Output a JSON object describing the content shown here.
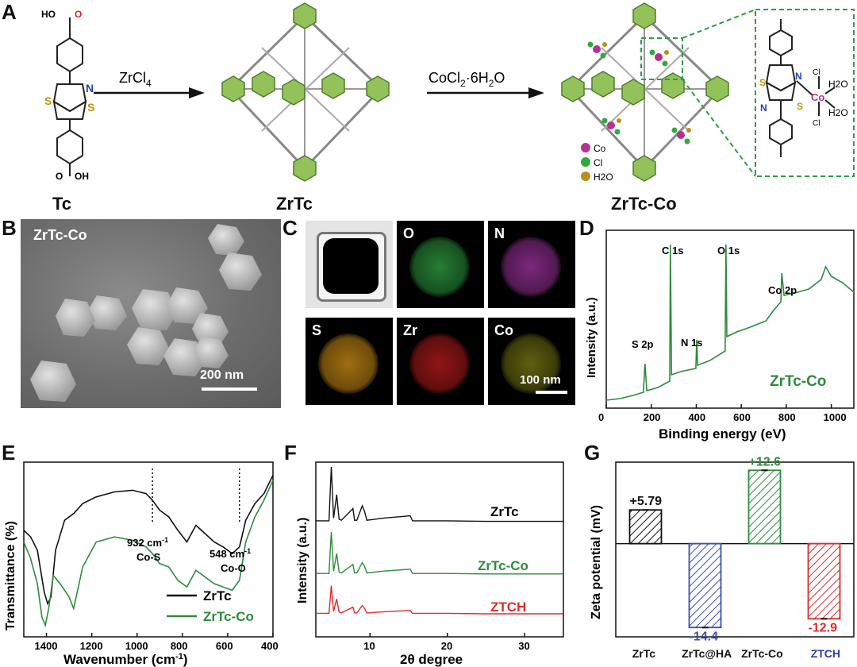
{
  "panels": {
    "A": {
      "label": "A",
      "structures": [
        "Tc",
        "ZrTc",
        "ZrTc-Co"
      ],
      "reagent1": "ZrCl",
      "reagent1_sub": "4",
      "reagent2_a": "CoCl",
      "reagent2_sub": "2",
      "reagent2_b": "·6H",
      "reagent2_sub2": "2",
      "reagent2_c": "O",
      "legend": [
        "Co",
        "Cl",
        "H2O"
      ],
      "legend_colors": [
        "#b5328e",
        "#2eab3a",
        "#b8901c"
      ],
      "atoms": {
        "S": "S",
        "N": "N",
        "Co": "Co",
        "Cl": "Cl",
        "H2O": "H2O",
        "OH": "OH",
        "HO": "HO",
        "O": "O"
      }
    },
    "B": {
      "label": "B",
      "sample": "ZrTc-Co",
      "scale": "200 nm"
    },
    "C": {
      "label": "C",
      "tiles": [
        "O",
        "N",
        "S",
        "Zr",
        "Co"
      ],
      "scale": "100 nm"
    },
    "D": {
      "label": "D",
      "sample": "ZrTc-Co",
      "peaks": [
        "C 1s",
        "O 1s",
        "Co 2p",
        "N 1s",
        "S 2p"
      ],
      "xlabel": "Binding energy (eV)",
      "ylabel": "Intensity (a.u.)",
      "xticks": [
        "0",
        "200",
        "400",
        "600",
        "800",
        "1000"
      ]
    },
    "E": {
      "label": "E",
      "xlabel": "Wavenumber (cm-1)",
      "ylabel": "Transmittance (%)",
      "xticks": [
        "1400",
        "1200",
        "1000",
        "800",
        "600",
        "400"
      ],
      "ann1": "932 cm-1",
      "ann1b": "Co-S",
      "ann2": "548 cm-1",
      "ann2b": "Co-O",
      "legend": [
        "ZrTc",
        "ZrTc-Co"
      ]
    },
    "F": {
      "label": "F",
      "xlabel": "2θ degree",
      "ylabel": "Intensity (a.u.)",
      "xticks": [
        "10",
        "20",
        "30"
      ],
      "series": [
        "ZrTc",
        "ZrTc-Co",
        "ZTCH"
      ]
    },
    "G": {
      "label": "G",
      "ylabel": "Zeta potential (mV)"
    }
  },
  "colors": {
    "zrtc": "#111111",
    "zrtcco": "#2e8b3c",
    "ztch": "#e02b2b",
    "ha": "#3a4fb0"
  },
  "chart_data": [
    {
      "type": "line",
      "panel": "D",
      "xlabel": "Binding energy (eV)",
      "ylabel": "Intensity (a.u.)",
      "xlim": [
        0,
        1100
      ],
      "series": [
        {
          "name": "ZrTc-Co",
          "x": [
            0,
            60,
            120,
            165,
            172,
            180,
            230,
            282,
            285,
            290,
            330,
            398,
            402,
            406,
            460,
            528,
            532,
            536,
            580,
            640,
            710,
            740,
            776,
            780,
            790,
            850,
            900,
            955,
            975,
            1000,
            1050,
            1100
          ],
          "y": [
            2,
            3,
            5,
            7,
            25,
            8,
            10,
            14,
            100,
            18,
            20,
            22,
            40,
            24,
            27,
            33,
            100,
            42,
            45,
            48,
            52,
            58,
            64,
            82,
            68,
            70,
            72,
            78,
            86,
            80,
            76,
            70
          ]
        }
      ],
      "annotations": [
        "C 1s",
        "O 1s",
        "Co 2p",
        "N 1s",
        "S 2p"
      ]
    },
    {
      "type": "line",
      "panel": "E",
      "xlabel": "Wavenumber (cm-1)",
      "ylabel": "Transmittance (%)",
      "xlim": [
        1500,
        400
      ],
      "series": [
        {
          "name": "ZrTc",
          "x": [
            1500,
            1470,
            1440,
            1410,
            1395,
            1380,
            1360,
            1320,
            1280,
            1240,
            1180,
            1100,
            1020,
            960,
            932,
            900,
            860,
            820,
            780,
            740,
            700,
            660,
            620,
            580,
            548,
            520,
            480,
            440,
            400
          ],
          "y": [
            62,
            58,
            50,
            25,
            18,
            22,
            50,
            68,
            72,
            78,
            82,
            85,
            86,
            84,
            80,
            74,
            70,
            62,
            55,
            65,
            60,
            55,
            52,
            48,
            52,
            68,
            78,
            84,
            95
          ]
        },
        {
          "name": "ZrTc-Co",
          "x": [
            1500,
            1470,
            1440,
            1420,
            1405,
            1390,
            1370,
            1340,
            1300,
            1280,
            1240,
            1180,
            1100,
            1020,
            960,
            932,
            900,
            860,
            820,
            780,
            740,
            700,
            660,
            620,
            580,
            548,
            520,
            480,
            440,
            400
          ],
          "y": [
            55,
            45,
            30,
            10,
            5,
            15,
            35,
            30,
            22,
            15,
            40,
            55,
            58,
            56,
            52,
            48,
            42,
            40,
            32,
            28,
            38,
            34,
            30,
            28,
            26,
            32,
            55,
            70,
            80,
            92
          ]
        }
      ],
      "annotations": [
        "932 cm-1 Co-S",
        "548 cm-1 Co-O"
      ]
    },
    {
      "type": "line",
      "panel": "F",
      "xlabel": "2θ degree",
      "ylabel": "Intensity (a.u.)",
      "xlim": [
        3,
        35
      ],
      "series": [
        {
          "name": "ZrTc",
          "x": [
            3,
            4.7,
            5.0,
            5.3,
            5.7,
            6.0,
            6.3,
            7.8,
            8.0,
            8.3,
            9.0,
            9.3,
            9.6,
            11.8,
            15.2,
            15.5,
            20,
            25,
            30,
            35
          ],
          "y": [
            3,
            3,
            100,
            8,
            50,
            6,
            4,
            25,
            4,
            4,
            30,
            20,
            4,
            8,
            12,
            3,
            3,
            2,
            2,
            2
          ]
        },
        {
          "name": "ZrTc-Co",
          "x": [
            3,
            4.7,
            5.0,
            5.3,
            5.7,
            6.0,
            6.3,
            7.8,
            8.0,
            8.3,
            9.0,
            9.3,
            9.6,
            11.8,
            15.2,
            15.5,
            20,
            25,
            30,
            35
          ],
          "y": [
            3,
            3,
            90,
            8,
            45,
            6,
            4,
            22,
            4,
            4,
            26,
            18,
            4,
            8,
            12,
            3,
            3,
            2,
            2,
            2
          ]
        },
        {
          "name": "ZTCH",
          "x": [
            3,
            4.7,
            5.0,
            5.3,
            5.7,
            6.0,
            6.3,
            7.8,
            8.0,
            8.3,
            9.0,
            9.3,
            9.6,
            11.8,
            15.2,
            15.5,
            20,
            25,
            30,
            35
          ],
          "y": [
            3,
            3,
            70,
            8,
            38,
            6,
            4,
            18,
            4,
            4,
            22,
            15,
            4,
            7,
            10,
            3,
            3,
            2,
            2,
            2
          ]
        }
      ]
    },
    {
      "type": "bar",
      "panel": "G",
      "ylabel": "Zeta potential (mV)",
      "categories": [
        "ZrTc",
        "ZrTc@HA",
        "ZrTc-Co",
        "ZTCH"
      ],
      "values": [
        5.79,
        -14.4,
        12.6,
        -12.9
      ],
      "value_labels": [
        "+5.79",
        "-14.4",
        "+12.6",
        "-12.9"
      ],
      "colors": [
        "#111111",
        "#3a4fb0",
        "#2e8b3c",
        "#e02b2b"
      ],
      "ylim": [
        -16,
        14
      ]
    }
  ]
}
